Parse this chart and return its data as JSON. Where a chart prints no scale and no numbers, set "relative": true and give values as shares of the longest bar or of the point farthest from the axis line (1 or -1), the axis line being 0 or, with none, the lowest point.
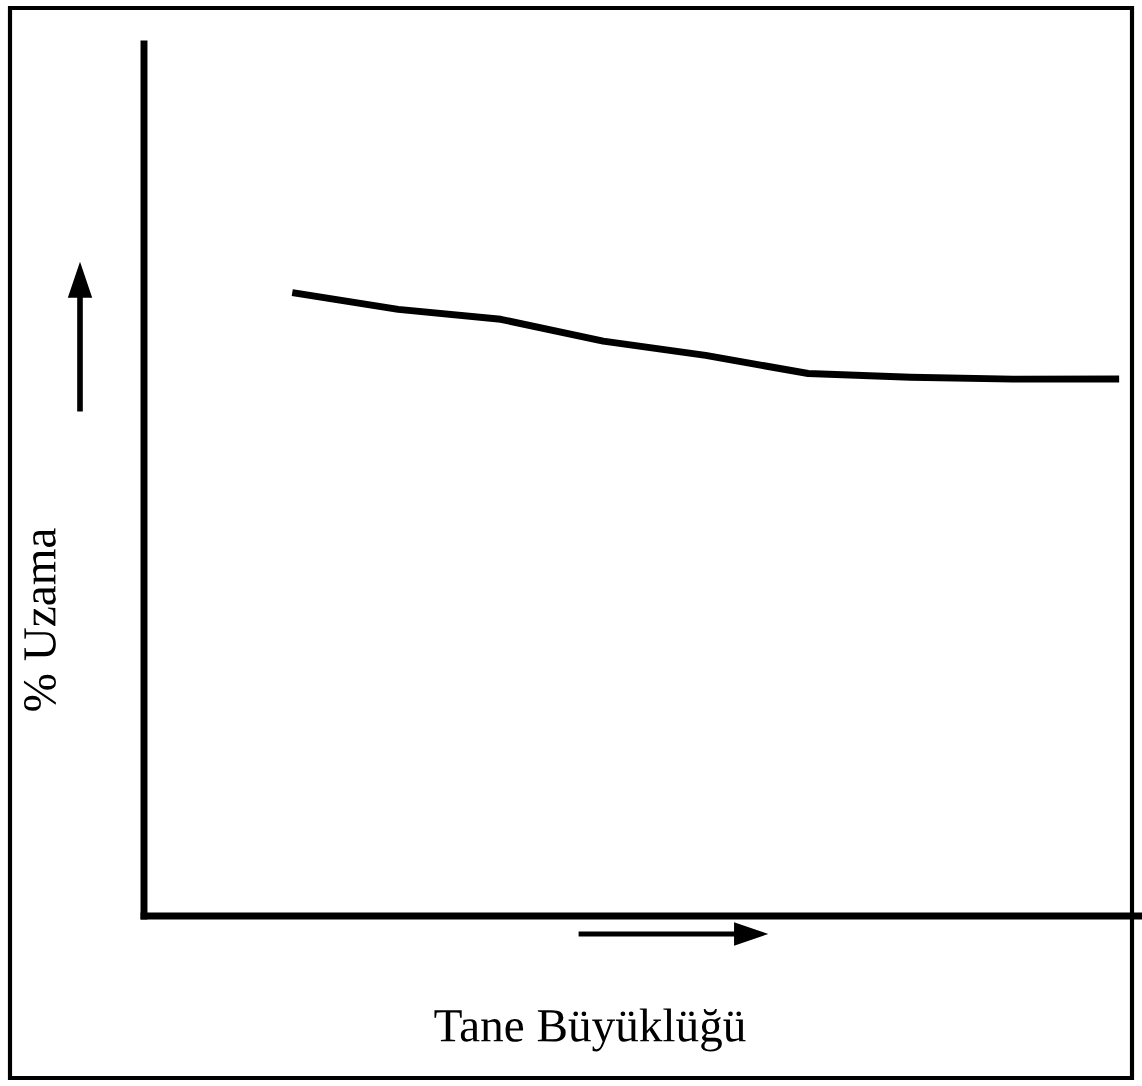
{
  "chart_data": {
    "type": "line",
    "relative": true,
    "xlabel": "Tane Büyüklüğü",
    "ylabel": "% Uzama",
    "categories": [
      null,
      null,
      null,
      null,
      null,
      null,
      null,
      null,
      null
    ],
    "series": [
      {
        "color": "#000000",
        "values": [
          1,
          0.974,
          0.958,
          0.923,
          0.9,
          0.871,
          0.865,
          0.862,
          0.862
        ]
      }
    ],
    "grid": false,
    "legend": false,
    "marker": "none",
    "line_style": "solid"
  }
}
